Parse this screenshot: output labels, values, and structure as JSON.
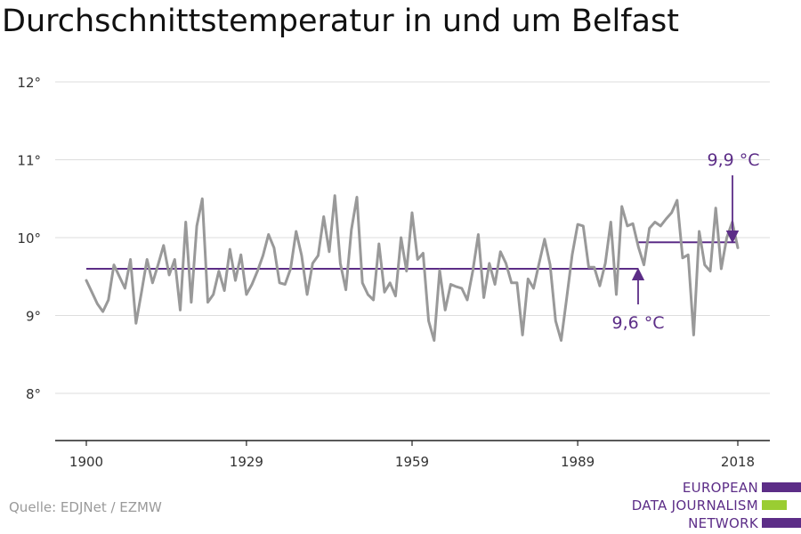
{
  "title": "Durchschnittstemperatur in und um Belfast",
  "source": "Quelle: EDJNet / EZMW",
  "logo": {
    "lines": [
      "EUROPEAN",
      "DATA JOURNALISM",
      "NETWORK"
    ],
    "colors": {
      "purple": "#5c2d87",
      "green": "#9acd32"
    }
  },
  "colors": {
    "series": "#999999",
    "average": "#5c2d87",
    "grid": "#dddddd",
    "axis": "#222222",
    "tick_label": "#333333"
  },
  "chart_data": {
    "type": "line",
    "title": "Durchschnittstemperatur in und um Belfast",
    "xlabel": "",
    "ylabel": "",
    "xlim": [
      1900,
      2018
    ],
    "ylim": [
      7.5,
      12.2
    ],
    "x_ticks": [
      1900,
      1929,
      1959,
      1989,
      2018
    ],
    "y_ticks": [
      8,
      9,
      10,
      11,
      12
    ],
    "y_tick_labels": [
      "8°",
      "9°",
      "10°",
      "11°",
      "12°"
    ],
    "grid": true,
    "series": [
      {
        "x": [
          1900,
          1901,
          1902,
          1903,
          1904,
          1905,
          1906,
          1907,
          1908,
          1909,
          1910,
          1911,
          1912,
          1913,
          1914,
          1915,
          1916,
          1917,
          1918,
          1919,
          1920,
          1921,
          1922,
          1923,
          1924,
          1925,
          1926,
          1927,
          1928,
          1929,
          1930,
          1931,
          1932,
          1933,
          1934,
          1935,
          1936,
          1937,
          1938,
          1939,
          1940,
          1941,
          1942,
          1943,
          1944,
          1945,
          1946,
          1947,
          1948,
          1949,
          1950,
          1951,
          1952,
          1953,
          1954,
          1955,
          1956,
          1957,
          1958,
          1959,
          1960,
          1961,
          1962,
          1963,
          1964,
          1965,
          1966,
          1967,
          1968,
          1969,
          1970,
          1971,
          1972,
          1973,
          1974,
          1975,
          1976,
          1977,
          1978,
          1979,
          1980,
          1981,
          1982,
          1983,
          1984,
          1985,
          1986,
          1987,
          1988,
          1989,
          1990,
          1991,
          1992,
          1993,
          1994,
          1995,
          1996,
          1997,
          1998,
          1999,
          2000,
          2001,
          2002,
          2003,
          2004,
          2005,
          2006,
          2007,
          2008,
          2009,
          2010,
          2011,
          2012,
          2013,
          2014,
          2015,
          2016,
          2017,
          2018
        ],
        "values": [
          9.45,
          9.3,
          9.15,
          9.05,
          9.2,
          9.65,
          9.5,
          9.35,
          9.72,
          8.9,
          9.3,
          9.72,
          9.42,
          9.65,
          9.9,
          9.52,
          9.72,
          9.07,
          10.2,
          9.17,
          10.15,
          10.5,
          9.17,
          9.27,
          9.57,
          9.32,
          9.85,
          9.45,
          9.78,
          9.27,
          9.4,
          9.57,
          9.77,
          10.04,
          9.87,
          9.42,
          9.4,
          9.6,
          10.08,
          9.77,
          9.27,
          9.67,
          9.77,
          10.27,
          9.82,
          10.54,
          9.67,
          9.33,
          10.1,
          10.52,
          9.42,
          9.27,
          9.2,
          9.92,
          9.3,
          9.42,
          9.25,
          10.0,
          9.57,
          10.32,
          9.72,
          9.8,
          8.93,
          8.68,
          9.58,
          9.07,
          9.4,
          9.37,
          9.35,
          9.2,
          9.57,
          10.04,
          9.23,
          9.67,
          9.4,
          9.82,
          9.67,
          9.42,
          9.42,
          8.75,
          9.47,
          9.35,
          9.67,
          9.98,
          9.65,
          8.93,
          8.68,
          9.22,
          9.78,
          10.17,
          10.15,
          9.62,
          9.62,
          9.38,
          9.67,
          10.2,
          9.27,
          10.4,
          10.15,
          10.18,
          9.88,
          9.65,
          10.12,
          10.2,
          10.15,
          10.24,
          10.32,
          10.48,
          9.74,
          9.78,
          8.75,
          10.08,
          9.65,
          9.57,
          10.38,
          9.6,
          10.0,
          10.2,
          9.87
        ]
      }
    ],
    "averages": [
      {
        "label": "9,6 °C",
        "value": 9.6,
        "x_start": 1900,
        "x_end": 2000
      },
      {
        "label": "9,9 °C",
        "value": 9.94,
        "x_start": 2000,
        "x_end": 2018
      }
    ]
  }
}
